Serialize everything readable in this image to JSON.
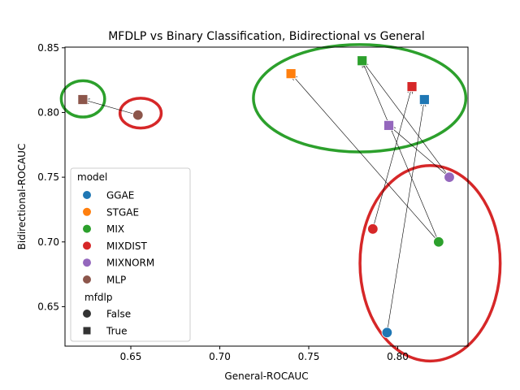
{
  "chart_data": {
    "type": "scatter",
    "title": "MFDLP vs Binary Classification, Bidirectional vs General",
    "xlabel": "General-ROCAUC",
    "ylabel": "Bidirectional-ROCAUC",
    "xlim": [
      0.613,
      0.8395
    ],
    "ylim": [
      0.6195,
      0.8505
    ],
    "xticks": [
      0.65,
      0.7,
      0.75,
      0.8
    ],
    "xtick_labels": [
      "0.65",
      "0.70",
      "0.75",
      "0.80"
    ],
    "yticks": [
      0.65,
      0.7,
      0.75,
      0.8,
      0.85
    ],
    "ytick_labels": [
      "0.65",
      "0.70",
      "0.75",
      "0.80",
      "0.85"
    ],
    "grid": false,
    "legend": {
      "placement": "lower-left",
      "model_title": "model",
      "models": [
        {
          "name": "GGAE",
          "color": "#1f77b4"
        },
        {
          "name": "STGAE",
          "color": "#ff7f0e"
        },
        {
          "name": "MIX",
          "color": "#2ca02c"
        },
        {
          "name": "MIXDIST",
          "color": "#d62728"
        },
        {
          "name": "MIXNORM",
          "color": "#9467bd"
        },
        {
          "name": "MLP",
          "color": "#8c564b"
        }
      ],
      "marker_title": "mfdlp",
      "markers": [
        {
          "name": "False",
          "shape": "circle"
        },
        {
          "name": "True",
          "shape": "square"
        }
      ]
    },
    "series": [
      {
        "model": "GGAE",
        "mfdlp": "False",
        "x": 0.794,
        "y": 0.63
      },
      {
        "model": "GGAE",
        "mfdlp": "True",
        "x": 0.815,
        "y": 0.81
      },
      {
        "model": "STGAE",
        "mfdlp": "True",
        "x": 0.74,
        "y": 0.83
      },
      {
        "model": "MIX",
        "mfdlp": "False",
        "x": 0.823,
        "y": 0.7
      },
      {
        "model": "MIX",
        "mfdlp": "True",
        "x": 0.78,
        "y": 0.84
      },
      {
        "model": "MIXDIST",
        "mfdlp": "False",
        "x": 0.786,
        "y": 0.71
      },
      {
        "model": "MIXDIST",
        "mfdlp": "True",
        "x": 0.808,
        "y": 0.82
      },
      {
        "model": "MIXNORM",
        "mfdlp": "False",
        "x": 0.829,
        "y": 0.75
      },
      {
        "model": "MIXNORM",
        "mfdlp": "True",
        "x": 0.795,
        "y": 0.79
      },
      {
        "model": "MLP",
        "mfdlp": "False",
        "x": 0.654,
        "y": 0.798
      },
      {
        "model": "MLP",
        "mfdlp": "True",
        "x": 0.623,
        "y": 0.81
      }
    ],
    "arrows": [
      {
        "model": "GGAE",
        "from": [
          0.794,
          0.63
        ],
        "to": [
          0.815,
          0.81
        ]
      },
      {
        "model": "MIX",
        "from": [
          0.823,
          0.7
        ],
        "to": [
          0.78,
          0.84
        ]
      },
      {
        "model": "MIX",
        "from": [
          0.823,
          0.7
        ],
        "to": [
          0.74,
          0.83
        ]
      },
      {
        "model": "MIXDIST",
        "from": [
          0.786,
          0.71
        ],
        "to": [
          0.808,
          0.82
        ]
      },
      {
        "model": "MIXNORM",
        "from": [
          0.829,
          0.75
        ],
        "to": [
          0.795,
          0.79
        ]
      },
      {
        "model": "MIXNORM",
        "from": [
          0.829,
          0.75
        ],
        "to": [
          0.78,
          0.84
        ]
      },
      {
        "model": "MLP",
        "from": [
          0.654,
          0.798
        ],
        "to": [
          0.623,
          0.81
        ]
      }
    ],
    "annotations": [
      {
        "shape": "ellipse",
        "color": "#2ca02c",
        "center": [
          0.6231,
          0.8105
        ],
        "radius": [
          0.0122,
          0.014
        ]
      },
      {
        "shape": "ellipse",
        "color": "#d62728",
        "center": [
          0.6555,
          0.7995
        ],
        "radius": [
          0.0116,
          0.0115
        ]
      },
      {
        "shape": "ellipse",
        "color": "#2ca02c",
        "center": [
          0.7786,
          0.811
        ],
        "radius": [
          0.0597,
          0.0415
        ]
      },
      {
        "shape": "ellipse",
        "color": "#d62728",
        "center": [
          0.8182,
          0.6835
        ],
        "radius": [
          0.0394,
          0.0755
        ]
      }
    ]
  }
}
